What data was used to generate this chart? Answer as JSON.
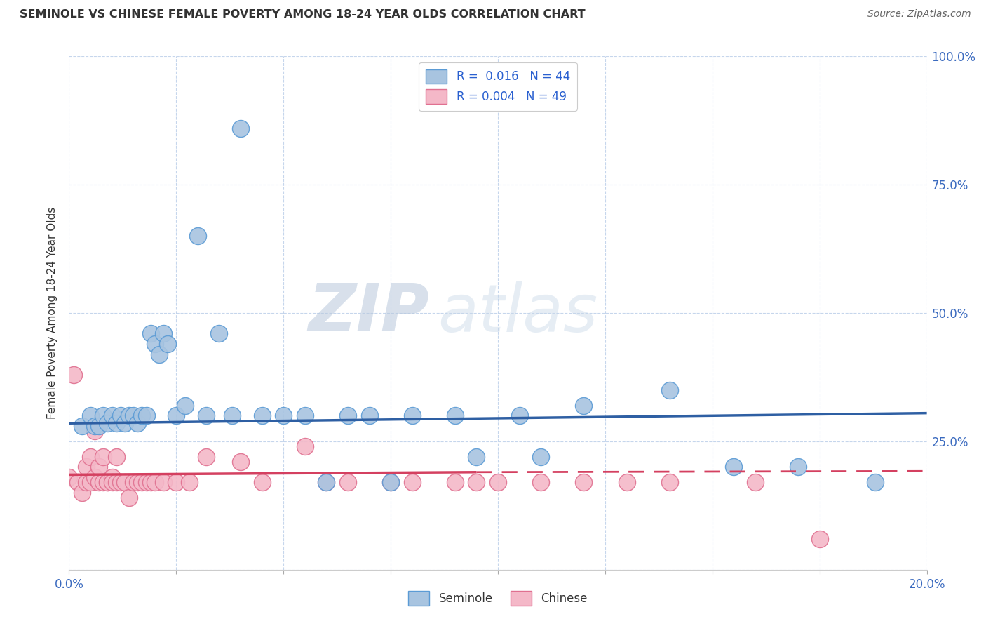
{
  "title": "SEMINOLE VS CHINESE FEMALE POVERTY AMONG 18-24 YEAR OLDS CORRELATION CHART",
  "source": "Source: ZipAtlas.com",
  "ylabel": "Female Poverty Among 18-24 Year Olds",
  "xlim": [
    0.0,
    0.2
  ],
  "ylim": [
    0.0,
    1.0
  ],
  "xticks": [
    0.0,
    0.025,
    0.05,
    0.075,
    0.1,
    0.125,
    0.15,
    0.175,
    0.2
  ],
  "yticks": [
    0.0,
    0.25,
    0.5,
    0.75,
    1.0
  ],
  "yticklabels_right": [
    "",
    "25.0%",
    "50.0%",
    "75.0%",
    "100.0%"
  ],
  "seminole_color": "#a8c4e0",
  "seminole_edge": "#5b9bd5",
  "chinese_color": "#f4b8c8",
  "chinese_edge": "#e07090",
  "trend_seminole_color": "#2e5fa3",
  "trend_chinese_color": "#d44060",
  "legend_R_seminole": "0.016",
  "legend_N_seminole": "44",
  "legend_R_chinese": "0.004",
  "legend_N_chinese": "49",
  "watermark_zip": "ZIP",
  "watermark_atlas": "atlas",
  "seminole_x": [
    0.003,
    0.005,
    0.006,
    0.007,
    0.008,
    0.009,
    0.01,
    0.011,
    0.012,
    0.013,
    0.014,
    0.015,
    0.016,
    0.017,
    0.018,
    0.019,
    0.02,
    0.021,
    0.022,
    0.023,
    0.025,
    0.027,
    0.03,
    0.032,
    0.035,
    0.038,
    0.04,
    0.045,
    0.05,
    0.055,
    0.06,
    0.065,
    0.07,
    0.075,
    0.08,
    0.09,
    0.095,
    0.105,
    0.11,
    0.12,
    0.14,
    0.155,
    0.17,
    0.188
  ],
  "seminole_y": [
    0.28,
    0.3,
    0.28,
    0.28,
    0.3,
    0.285,
    0.3,
    0.285,
    0.3,
    0.285,
    0.3,
    0.3,
    0.285,
    0.3,
    0.3,
    0.46,
    0.44,
    0.42,
    0.46,
    0.44,
    0.3,
    0.32,
    0.65,
    0.3,
    0.46,
    0.3,
    0.86,
    0.3,
    0.3,
    0.3,
    0.17,
    0.3,
    0.3,
    0.17,
    0.3,
    0.3,
    0.22,
    0.3,
    0.22,
    0.32,
    0.35,
    0.2,
    0.2,
    0.17
  ],
  "chinese_x": [
    0.0,
    0.001,
    0.002,
    0.003,
    0.004,
    0.004,
    0.005,
    0.005,
    0.006,
    0.006,
    0.007,
    0.007,
    0.008,
    0.008,
    0.009,
    0.009,
    0.01,
    0.01,
    0.011,
    0.011,
    0.012,
    0.013,
    0.014,
    0.015,
    0.016,
    0.017,
    0.018,
    0.019,
    0.02,
    0.022,
    0.025,
    0.028,
    0.032,
    0.04,
    0.045,
    0.055,
    0.06,
    0.065,
    0.075,
    0.08,
    0.09,
    0.095,
    0.1,
    0.11,
    0.12,
    0.13,
    0.14,
    0.16,
    0.175
  ],
  "chinese_y": [
    0.18,
    0.38,
    0.17,
    0.15,
    0.17,
    0.2,
    0.22,
    0.17,
    0.27,
    0.18,
    0.17,
    0.2,
    0.17,
    0.22,
    0.17,
    0.17,
    0.18,
    0.17,
    0.22,
    0.17,
    0.17,
    0.17,
    0.14,
    0.17,
    0.17,
    0.17,
    0.17,
    0.17,
    0.17,
    0.17,
    0.17,
    0.17,
    0.22,
    0.21,
    0.17,
    0.24,
    0.17,
    0.17,
    0.17,
    0.17,
    0.17,
    0.17,
    0.17,
    0.17,
    0.17,
    0.17,
    0.17,
    0.17,
    0.06
  ],
  "sem_trend_x0": 0.0,
  "sem_trend_y0": 0.285,
  "sem_trend_x1": 0.2,
  "sem_trend_y1": 0.305,
  "chi_trend_x0": 0.0,
  "chi_trend_y0": 0.185,
  "chi_trend_x1": 0.095,
  "chi_trend_y1": 0.19,
  "chi_trend_dash_x0": 0.095,
  "chi_trend_dash_y0": 0.19,
  "chi_trend_dash_x1": 0.2,
  "chi_trend_dash_y1": 0.192
}
